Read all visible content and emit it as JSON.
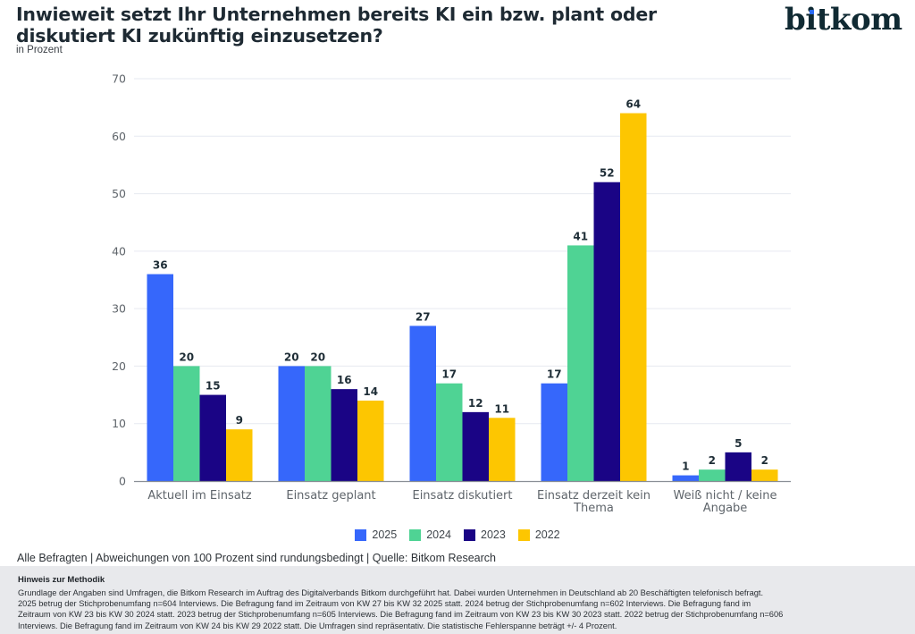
{
  "header": {
    "title": "Inwieweit setzt Ihr Unternehmen bereits KI ein bzw. plant oder diskutiert KI zukünftig einzusetzen?",
    "subtitle": "in Prozent",
    "logo": "bitkom"
  },
  "chart_data": {
    "type": "bar",
    "title": "Inwieweit setzt Ihr Unternehmen bereits KI ein bzw. plant oder diskutiert KI zukünftig einzusetzen?",
    "subtitle": "in Prozent",
    "xlabel": "",
    "ylabel": "",
    "ylim": [
      0,
      70
    ],
    "yticks": [
      0,
      10,
      20,
      30,
      40,
      50,
      60,
      70
    ],
    "grid": true,
    "legend_position": "bottom-center",
    "categories": [
      [
        "Aktuell im Einsatz"
      ],
      [
        "Einsatz geplant"
      ],
      [
        "Einsatz diskutiert"
      ],
      [
        "Einsatz derzeit kein",
        "Thema"
      ],
      [
        "Weiß nicht / keine",
        "Angabe"
      ]
    ],
    "series": [
      {
        "name": "2025",
        "color": "#3667fb",
        "values": [
          36,
          20,
          27,
          17,
          1
        ]
      },
      {
        "name": "2024",
        "color": "#4fd394",
        "values": [
          20,
          20,
          17,
          41,
          2
        ]
      },
      {
        "name": "2023",
        "color": "#1a0485",
        "values": [
          15,
          16,
          12,
          52,
          5
        ]
      },
      {
        "name": "2022",
        "color": "#fdc601",
        "values": [
          9,
          14,
          11,
          64,
          2
        ]
      }
    ]
  },
  "footer": {
    "note": "Alle Befragten | Abweichungen von 100 Prozent sind rundungsbedingt | Quelle: Bitkom Research",
    "method_title": "Hinweis zur Methodik",
    "method_lines": [
      "Grundlage der Angaben sind Umfragen, die Bitkom Research im Auftrag des Digitalverbands Bitkom durchgeführt hat. Dabei wurden Unternehmen in Deutschland ab 20 Beschäftigten telefonisch befragt.",
      "2025 betrug der Stichprobenumfang n=604 Interviews. Die Befragung fand im Zeitraum von KW 27 bis KW 32 2025 statt. 2024 betrug der Stichprobenumfang n=602 Interviews. Die Befragung fand im",
      "Zeitraum von KW 23 bis KW 30 2024 statt. 2023 betrug der Stichprobenumfang n=605 Interviews. Die Befragung fand im Zeitraum von KW 23 bis KW 30 2023 statt. 2022 betrug der Stichprobenumfang n=606",
      "Interviews. Die Befragung fand im Zeitraum von KW 24 bis KW 29 2022 statt. Die Umfragen sind repräsentativ. Die statistische Fehlerspanne beträgt +/- 4 Prozent."
    ]
  }
}
